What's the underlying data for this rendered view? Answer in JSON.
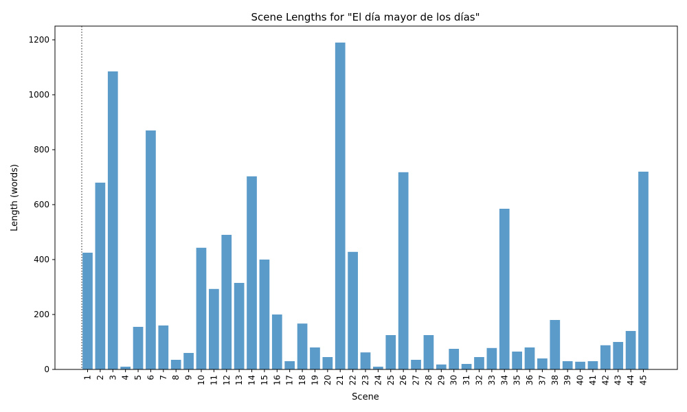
{
  "chart_data": {
    "type": "bar",
    "title": "Scene Lengths for \"El día mayor de los días\"",
    "xlabel": "Scene",
    "ylabel": "Length (words)",
    "ylim": [
      0,
      1250
    ],
    "yticks": [
      0,
      200,
      400,
      600,
      800,
      1000,
      1200
    ],
    "categories": [
      "1",
      "2",
      "3",
      "4",
      "5",
      "6",
      "7",
      "8",
      "9",
      "10",
      "11",
      "12",
      "13",
      "14",
      "15",
      "16",
      "17",
      "18",
      "19",
      "20",
      "21",
      "22",
      "23",
      "24",
      "25",
      "26",
      "27",
      "28",
      "29",
      "30",
      "31",
      "32",
      "33",
      "34",
      "35",
      "36",
      "37",
      "38",
      "39",
      "40",
      "41",
      "42",
      "43",
      "44",
      "45"
    ],
    "values": [
      425,
      680,
      1085,
      10,
      155,
      870,
      160,
      35,
      60,
      443,
      293,
      490,
      315,
      703,
      400,
      200,
      30,
      167,
      80,
      45,
      1190,
      428,
      62,
      10,
      125,
      718,
      35,
      125,
      18,
      75,
      20,
      45,
      78,
      585,
      65,
      80,
      40,
      180,
      30,
      28,
      30,
      88,
      100,
      140,
      720
    ],
    "bar_color": "#5b9bc9",
    "grid": false
  }
}
